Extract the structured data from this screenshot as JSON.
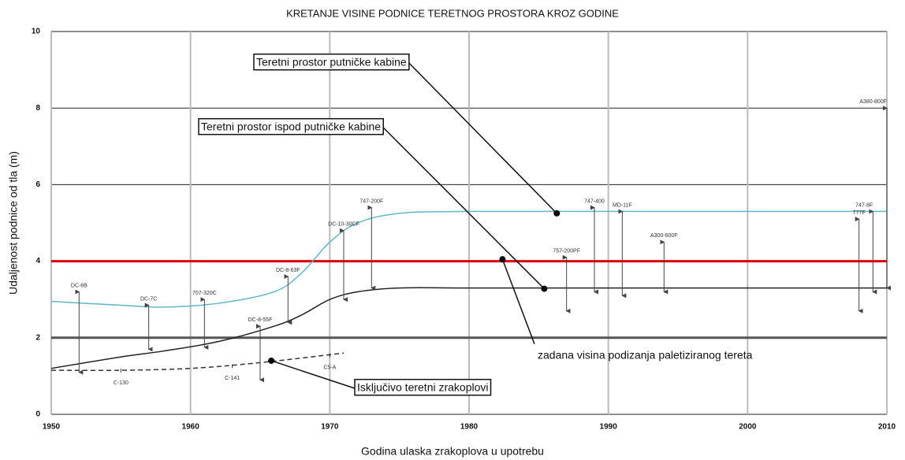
{
  "chart_data": {
    "type": "line",
    "title": "KRETANJE VISINE PODNICE TERETNOG PROSTORA KROZ GODINE",
    "x_label": "Godina ulaska zrakoplova u upotrebu",
    "y_label": "Udaljenost podnice od tla (m)",
    "xlim": [
      1950,
      2010
    ],
    "xticks": [
      1950,
      1960,
      1970,
      1980,
      1990,
      2000,
      2010
    ],
    "ylim": [
      0,
      10
    ],
    "yticks": [
      0,
      2,
      4,
      6,
      8,
      10
    ],
    "grid": true,
    "series": [
      {
        "color": "#5fb8c8",
        "x": [
          1950,
          1955,
          1958,
          1962,
          1966,
          1968,
          1970,
          1972,
          1975,
          1980,
          1990,
          2000,
          2010
        ],
        "y": [
          2.95,
          2.85,
          2.8,
          2.9,
          3.2,
          3.7,
          4.5,
          5.0,
          5.25,
          5.3,
          5.3,
          5.3,
          5.3
        ]
      },
      {
        "color": "#222222",
        "x": [
          1950,
          1955,
          1958,
          1962,
          1966,
          1968,
          1970,
          1972,
          1975,
          1980,
          1990,
          2000,
          2010
        ],
        "y": [
          1.2,
          1.5,
          1.65,
          1.9,
          2.3,
          2.6,
          3.0,
          3.2,
          3.3,
          3.3,
          3.3,
          3.3,
          3.3
        ]
      },
      {
        "color": "#333333",
        "dashed": true,
        "x": [
          1950,
          1955,
          1960,
          1965,
          1971
        ],
        "y": [
          1.15,
          1.15,
          1.2,
          1.35,
          1.6
        ]
      }
    ],
    "ref_lines": [
      {
        "value": 4,
        "color": "#e00000"
      },
      {
        "value": 2,
        "color": "#555555"
      }
    ],
    "aircraft": [
      {
        "name": "DC-6B",
        "x": 1952,
        "top": 3.2,
        "bottom": 1.1
      },
      {
        "name": "DC-7C",
        "x": 1957,
        "top": 2.85,
        "bottom": 1.7
      },
      {
        "name": "707-320C",
        "x": 1961,
        "top": 3.0,
        "bottom": 1.75
      },
      {
        "name": "DC-8-55F",
        "x": 1965,
        "top": 2.3,
        "bottom": 0.9
      },
      {
        "name": "DC-8-63F",
        "x": 1967,
        "top": 3.6,
        "bottom": 2.4
      },
      {
        "name": "DC-10-30CF",
        "x": 1971,
        "top": 4.8,
        "bottom": 3.0
      },
      {
        "name": "747-200F",
        "x": 1973,
        "top": 5.4,
        "bottom": 3.3
      },
      {
        "name": "757-200PF",
        "x": 1987,
        "top": 4.1,
        "bottom": 2.7
      },
      {
        "name": "747-400",
        "x": 1989,
        "top": 5.4,
        "bottom": 3.2
      },
      {
        "name": "MD-11F",
        "x": 1991,
        "top": 5.3,
        "bottom": 3.1
      },
      {
        "name": "A300-600F",
        "x": 1994,
        "top": 4.5,
        "bottom": 3.2
      },
      {
        "name": "777F",
        "x": 2008,
        "top": 5.1,
        "bottom": 2.7
      },
      {
        "name": "747-8F",
        "x": 2009,
        "top": 5.3,
        "bottom": 3.2
      },
      {
        "name": "A380-800F",
        "x": 2010,
        "top": 8.0,
        "bottom": 3.3
      }
    ],
    "freighters": [
      {
        "name": "C-130",
        "x": 1955,
        "y": 1.15
      },
      {
        "name": "C-141",
        "x": 1963,
        "y": 1.27
      },
      {
        "name": "C5-A",
        "x": 1970,
        "y": 1.55
      }
    ],
    "callouts": [
      {
        "text": "Teretni prostor putničke kabine",
        "x": 1986.3,
        "y": 5.25
      },
      {
        "text": "Teretni prostor ispod putničke kabine",
        "x": 1985.4,
        "y": 3.28
      },
      {
        "text": "zadana visina podizanja paletiziranog tereta",
        "x": 1982.4,
        "y": 4.05
      },
      {
        "text": "Isključivo teretni zrakoplovi",
        "x": 1965.8,
        "y": 1.4
      }
    ]
  }
}
